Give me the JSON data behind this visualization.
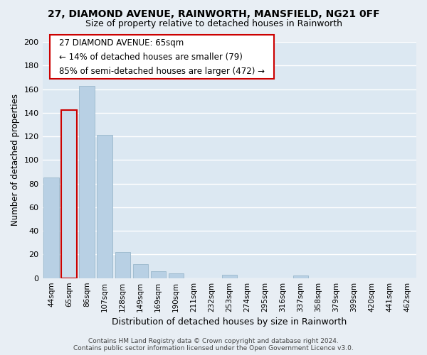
{
  "title": "27, DIAMOND AVENUE, RAINWORTH, MANSFIELD, NG21 0FF",
  "subtitle": "Size of property relative to detached houses in Rainworth",
  "xlabel": "Distribution of detached houses by size in Rainworth",
  "ylabel": "Number of detached properties",
  "bar_labels": [
    "44sqm",
    "65sqm",
    "86sqm",
    "107sqm",
    "128sqm",
    "149sqm",
    "169sqm",
    "190sqm",
    "211sqm",
    "232sqm",
    "253sqm",
    "274sqm",
    "295sqm",
    "316sqm",
    "337sqm",
    "358sqm",
    "379sqm",
    "399sqm",
    "420sqm",
    "441sqm",
    "462sqm"
  ],
  "bar_values": [
    85,
    142,
    163,
    121,
    22,
    12,
    6,
    4,
    0,
    0,
    3,
    0,
    0,
    0,
    2,
    0,
    0,
    0,
    0,
    0,
    0
  ],
  "highlight_bar_index": 1,
  "highlight_color": "#ccdded",
  "normal_color": "#b8d0e4",
  "highlight_edge_color": "#cc0000",
  "normal_edge_color": "#9ab8cc",
  "ylim": [
    0,
    200
  ],
  "yticks": [
    0,
    20,
    40,
    60,
    80,
    100,
    120,
    140,
    160,
    180,
    200
  ],
  "annotation_text": "27 DIAMOND AVENUE: 65sqm\n← 14% of detached houses are smaller (79)\n85% of semi-detached houses are larger (472) →",
  "footer_text": "Contains HM Land Registry data © Crown copyright and database right 2024.\nContains public sector information licensed under the Open Government Licence v3.0.",
  "bg_color": "#e8eef4",
  "grid_color": "#ffffff",
  "bar_area_bg": "#dce8f2",
  "title_fontsize": 10,
  "subtitle_fontsize": 9
}
